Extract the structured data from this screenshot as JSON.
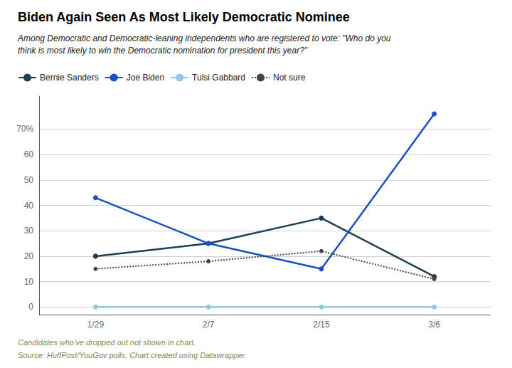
{
  "chart_data": {
    "type": "line",
    "title": "Biden Again Seen As Most Likely Democratic Nominee",
    "subtitle": "Among Democratic and Democratic-leaning independents who are registered to vote: \"Who do you\nthink is most likely to win the Democratic nomination for president this year?\"",
    "annotations": [
      "Candidates who’ve dropped out not shown in chart.",
      "Source: HuffPost/YouGov polls. Chart created using Datawrapper."
    ],
    "categories": [
      "1/29",
      "2/7",
      "2/15",
      "3/6"
    ],
    "series": [
      {
        "name": "Bernie Sanders",
        "color": "#1c3f54",
        "values": [
          20,
          25,
          35,
          12
        ],
        "marker": "circle",
        "line_style": "solid"
      },
      {
        "name": "Joe Biden",
        "color": "#1b4fc4",
        "values": [
          43,
          25,
          15,
          76
        ],
        "marker": "circle",
        "line_style": "solid"
      },
      {
        "name": "Tulsi Gabbard",
        "color": "#8ecae6",
        "values": [
          0,
          0,
          0,
          0
        ],
        "marker": "circle",
        "line_style": "solid"
      },
      {
        "name": "Not sure",
        "color": "#444444",
        "values": [
          15,
          18,
          22,
          11
        ],
        "marker": "circle",
        "line_style": "dotted"
      }
    ],
    "ylim": [
      -3,
      83
    ],
    "yticks": [
      0,
      10,
      20,
      30,
      40,
      50,
      60,
      {
        "value": 70,
        "label": "70%"
      }
    ],
    "grid": true,
    "legend": "upper-left"
  }
}
